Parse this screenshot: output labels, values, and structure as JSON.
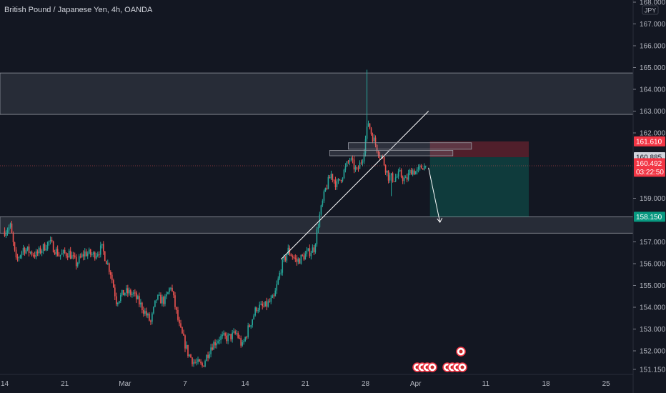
{
  "chart_title": "British Pound / Japanese Yen, 4h, OANDA",
  "currency_label": "JPY",
  "price_badges": {
    "stop": "161.610",
    "mid": "160.885",
    "last": "160.492",
    "countdown": "03:22:50",
    "target": "158.150"
  },
  "chart_data": {
    "type": "candlestick",
    "ylim": [
      151.0,
      168.0
    ],
    "y_ticks": [
      {
        "v": 168,
        "label": "168.000"
      },
      {
        "v": 167,
        "label": "167.000"
      },
      {
        "v": 166,
        "label": "166.000"
      },
      {
        "v": 165,
        "label": "165.000"
      },
      {
        "v": 164,
        "label": "164.000"
      },
      {
        "v": 163,
        "label": "163.000"
      },
      {
        "v": 162,
        "label": "162.000"
      },
      {
        "v": 159,
        "label": "159.000"
      },
      {
        "v": 157,
        "label": "157.000"
      },
      {
        "v": 156,
        "label": "156.000"
      },
      {
        "v": 155,
        "label": "155.000"
      },
      {
        "v": 154,
        "label": "154.000"
      },
      {
        "v": 153,
        "label": "153.000"
      },
      {
        "v": 152,
        "label": "152.000"
      },
      {
        "v": 151.15,
        "label": "151.150"
      }
    ],
    "x_ticks": [
      {
        "i": 0,
        "label": "14"
      },
      {
        "i": 42,
        "label": "21"
      },
      {
        "i": 84,
        "label": "Mar"
      },
      {
        "i": 126,
        "label": "7"
      },
      {
        "i": 168,
        "label": "14"
      },
      {
        "i": 210,
        "label": "21"
      },
      {
        "i": 252,
        "label": "28"
      },
      {
        "i": 287,
        "label": "Apr"
      },
      {
        "i": 336,
        "label": "11"
      },
      {
        "i": 378,
        "label": "18"
      },
      {
        "i": 420,
        "label": "25"
      }
    ],
    "anchors": [
      [
        0,
        157.5
      ],
      [
        4,
        157.7
      ],
      [
        8,
        156.1
      ],
      [
        13,
        156.7
      ],
      [
        22,
        156.4
      ],
      [
        31,
        157.0
      ],
      [
        38,
        156.4
      ],
      [
        45,
        156.5
      ],
      [
        50,
        156.0
      ],
      [
        56,
        156.5
      ],
      [
        62,
        156.4
      ],
      [
        68,
        156.7
      ],
      [
        74,
        155.6
      ],
      [
        78,
        154.3
      ],
      [
        84,
        154.7
      ],
      [
        90,
        154.6
      ],
      [
        96,
        154.0
      ],
      [
        102,
        153.3
      ],
      [
        106,
        154.4
      ],
      [
        112,
        154.3
      ],
      [
        116,
        155.0
      ],
      [
        122,
        153.1
      ],
      [
        128,
        151.9
      ],
      [
        132,
        151.5
      ],
      [
        138,
        151.3
      ],
      [
        144,
        152.2
      ],
      [
        150,
        152.6
      ],
      [
        156,
        152.6
      ],
      [
        162,
        152.8
      ],
      [
        166,
        152.2
      ],
      [
        170,
        153.0
      ],
      [
        176,
        154.0
      ],
      [
        181,
        154.0
      ],
      [
        188,
        154.4
      ],
      [
        193,
        155.8
      ],
      [
        198,
        156.6
      ],
      [
        204,
        156.1
      ],
      [
        210,
        156.4
      ],
      [
        216,
        156.7
      ],
      [
        220,
        158.2
      ],
      [
        224,
        159.4
      ],
      [
        228,
        160.1
      ],
      [
        232,
        159.6
      ],
      [
        236,
        160.1
      ],
      [
        241,
        160.8
      ],
      [
        246,
        160.2
      ],
      [
        250,
        160.9
      ],
      [
        254,
        162.5
      ],
      [
        256,
        162.0
      ],
      [
        260,
        161.3
      ],
      [
        264,
        160.8
      ],
      [
        268,
        160.0
      ],
      [
        272,
        159.9
      ],
      [
        276,
        160.1
      ],
      [
        280,
        159.8
      ],
      [
        284,
        160.3
      ],
      [
        288,
        160.2
      ],
      [
        292,
        160.5
      ],
      [
        294,
        160.4
      ]
    ],
    "zones": [
      {
        "name": "upper-supply-zone",
        "top": 164.75,
        "bottom": 162.85
      },
      {
        "name": "lower-demand-zone",
        "top": 158.15,
        "bottom": 157.4
      }
    ],
    "trendline": {
      "from": [
        193,
        156.2
      ],
      "to": [
        296,
        163.0
      ]
    },
    "small_boxes": [
      {
        "x1": 240,
        "x2": 326,
        "top": 161.55,
        "bottom": 161.25
      },
      {
        "x1": 227,
        "x2": 313,
        "top": 161.2,
        "bottom": 160.95
      }
    ],
    "position": {
      "x1": 297,
      "x2": 366,
      "entry": 160.885,
      "stop": 161.61,
      "target": 158.15
    },
    "projection": {
      "from": [
        296,
        160.4
      ],
      "to": [
        304,
        157.9
      ]
    },
    "current_price": 160.492,
    "colors": {
      "up": "#26a69a",
      "down": "#ef5350",
      "up_bright": "#22ab94",
      "down_bright": "#f23645",
      "target_badge": "#089981",
      "stop_badge": "#f23645"
    }
  }
}
